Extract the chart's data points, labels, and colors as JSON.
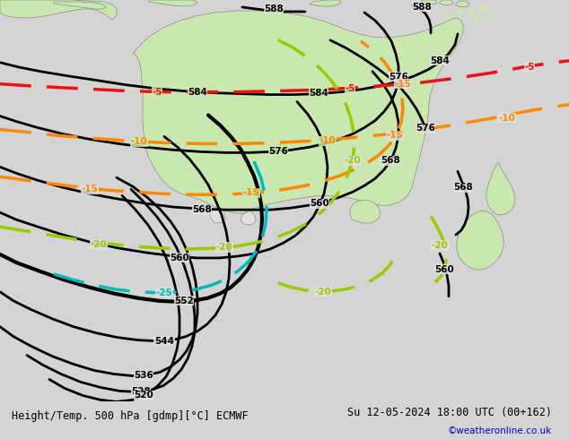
{
  "title_left": "Height/Temp. 500 hPa [gdmp][°C] ECMWF",
  "title_right": "Su 12-05-2024 18:00 UTC (00+162)",
  "credit": "©weatheronline.co.uk",
  "bg_color": "#d4d4d4",
  "land_color": "#c8e8b0",
  "sea_color": "#e0e0e0",
  "bottom_bar_color": "#e8e8e8",
  "credit_color": "#0000cc",
  "contour_colors": {
    "height_black": "#000000",
    "height_thick": "#000000",
    "temp_red": "#ee1111",
    "temp_orange": "#ff8800",
    "temp_yellow_green": "#99cc00",
    "temp_cyan": "#00bbbb"
  }
}
